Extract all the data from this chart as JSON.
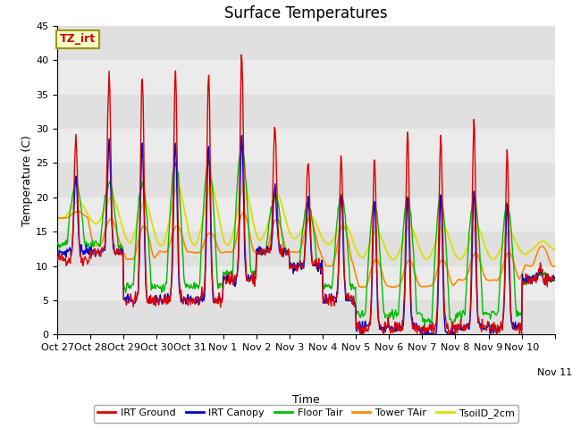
{
  "title": "Surface Temperatures",
  "xlabel": "Time",
  "ylabel": "Temperature (C)",
  "ylim": [
    0,
    45
  ],
  "tick_labels": [
    "Oct 27",
    "Oct 28",
    "Oct 29",
    "Oct 30",
    "Oct 31",
    "Nov 1",
    "Nov 2",
    "Nov 3",
    "Nov 4",
    "Nov 5",
    "Nov 6",
    "Nov 7",
    "Nov 8",
    "Nov 9",
    "Nov 10",
    "Nov 11"
  ],
  "legend_entries": [
    "IRT Ground",
    "IRT Canopy",
    "Floor Tair",
    "Tower TAir",
    "TsoilD_2cm"
  ],
  "line_colors": [
    "#dd0000",
    "#0000cc",
    "#00bb00",
    "#ff8800",
    "#dddd00"
  ],
  "annotation_text": "TZ_irt",
  "annotation_color": "#cc0000",
  "annotation_bg": "#ffffcc",
  "axes_bg": "#ebebeb",
  "band_colors": [
    "#e0e0e0",
    "#ebebeb"
  ],
  "title_fontsize": 12,
  "legend_fontsize": 8,
  "tick_fontsize": 8
}
